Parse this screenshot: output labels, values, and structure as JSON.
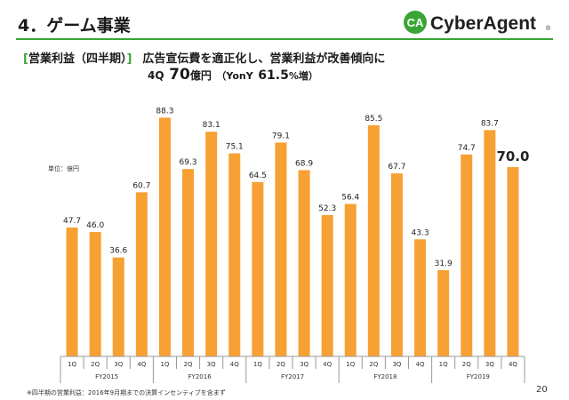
{
  "header": {
    "title": "4．ゲーム事業",
    "logo_text": "CyberAgent",
    "logo_mark": "CA",
    "logo_registered": "®"
  },
  "summary": {
    "bracket_open": "[",
    "section": "営業利益（四半期）",
    "bracket_close": "]",
    "headline": "広告宣伝費を適正化し、営業利益が改善傾向に",
    "quarter": "4Q",
    "amount": "70",
    "amount_unit": "億円",
    "yoy_open": "（YonY",
    "yoy_value": "61.5",
    "yoy_unit": "%増）"
  },
  "unit_label": "単位：億円",
  "footnote": "※四半期の営業利益：2016年9月期までの決算インセンティブを含まず",
  "page_number": "20",
  "colors": {
    "bar": "#f7a033",
    "accent_green": "#3aa535",
    "axis": "#999999"
  },
  "chart_data": {
    "type": "bar",
    "quarters": [
      "1Q",
      "2Q",
      "3Q",
      "4Q",
      "1Q",
      "2Q",
      "3Q",
      "4Q",
      "1Q",
      "2Q",
      "3Q",
      "4Q",
      "1Q",
      "2Q",
      "3Q",
      "4Q",
      "1Q",
      "2Q",
      "3Q",
      "4Q"
    ],
    "groups": [
      "FY2015",
      "FY2016",
      "FY2017",
      "FY2018",
      "FY2019"
    ],
    "values": [
      47.7,
      46.0,
      36.6,
      60.7,
      88.3,
      69.3,
      83.1,
      75.1,
      64.5,
      79.1,
      68.9,
      52.3,
      56.4,
      85.5,
      67.7,
      43.3,
      31.9,
      74.7,
      83.7,
      70.0
    ],
    "value_labels": [
      "47.7",
      "46.0",
      "36.6",
      "60.7",
      "88.3",
      "69.3",
      "83.1",
      "75.1",
      "64.5",
      "79.1",
      "68.9",
      "52.3",
      "56.4",
      "85.5",
      "67.7",
      "43.3",
      "31.9",
      "74.7",
      "83.7",
      "70.0"
    ],
    "highlight_index": 19,
    "ylim": [
      0,
      95
    ],
    "grid": false,
    "legend": "none"
  }
}
